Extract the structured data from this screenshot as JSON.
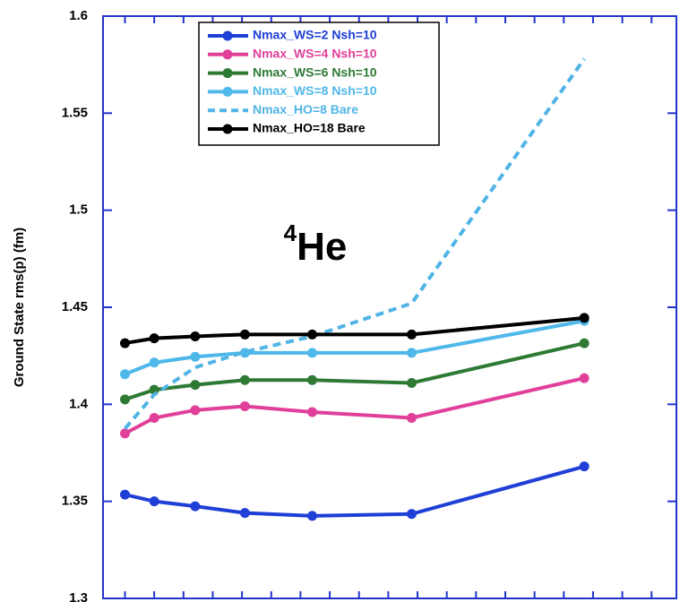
{
  "chart_data": {
    "type": "line",
    "ylabel": "Ground State rms(p) (fm)",
    "annotation": {
      "superscript": "4",
      "text": "He"
    },
    "x": [
      0,
      1,
      2.4,
      4.1,
      6.4,
      9.8,
      15.7
    ],
    "xlim": [
      -0.75,
      18.85
    ],
    "xticks": [
      0,
      1,
      2,
      3,
      4,
      5,
      6,
      7,
      8,
      9,
      10,
      11,
      12,
      13,
      14,
      15,
      16,
      17,
      18
    ],
    "ylim": [
      1.3,
      1.6
    ],
    "yticks": [
      1.3,
      1.35,
      1.4,
      1.45,
      1.5,
      1.55,
      1.6
    ],
    "legend": "top-left",
    "series": [
      {
        "name": "Nmax_WS=2 Nsh=10",
        "color": "#1f3fd6",
        "dashed": false,
        "markers": true,
        "values": [
          1.3535,
          1.35,
          1.3475,
          1.344,
          1.3425,
          1.3435,
          1.368
        ]
      },
      {
        "name": "Nmax_WS=4 Nsh=10",
        "color": "#e0409a",
        "dashed": false,
        "markers": true,
        "values": [
          1.385,
          1.393,
          1.397,
          1.399,
          1.396,
          1.393,
          1.4135
        ]
      },
      {
        "name": "Nmax_WS=6 Nsh=10",
        "color": "#2e7a35",
        "dashed": false,
        "markers": true,
        "values": [
          1.4025,
          1.4075,
          1.41,
          1.4125,
          1.4125,
          1.411,
          1.4315
        ]
      },
      {
        "name": "Nmax_WS=8 Nsh=10",
        "color": "#4fb8ea",
        "dashed": false,
        "markers": true,
        "values": [
          1.4155,
          1.4215,
          1.4245,
          1.4265,
          1.4265,
          1.4265,
          1.443
        ]
      },
      {
        "name": "Nmax_HO=8 Bare",
        "color": "#50b4e6",
        "dashed": true,
        "markers": false,
        "values": [
          1.3875,
          1.405,
          1.419,
          1.427,
          1.435,
          1.452,
          1.578
        ]
      },
      {
        "name": "Nmax_HO=18 Bare",
        "color": "#000000",
        "dashed": false,
        "markers": true,
        "values": [
          1.4315,
          1.434,
          1.435,
          1.436,
          1.436,
          1.436,
          1.4445
        ]
      }
    ]
  }
}
